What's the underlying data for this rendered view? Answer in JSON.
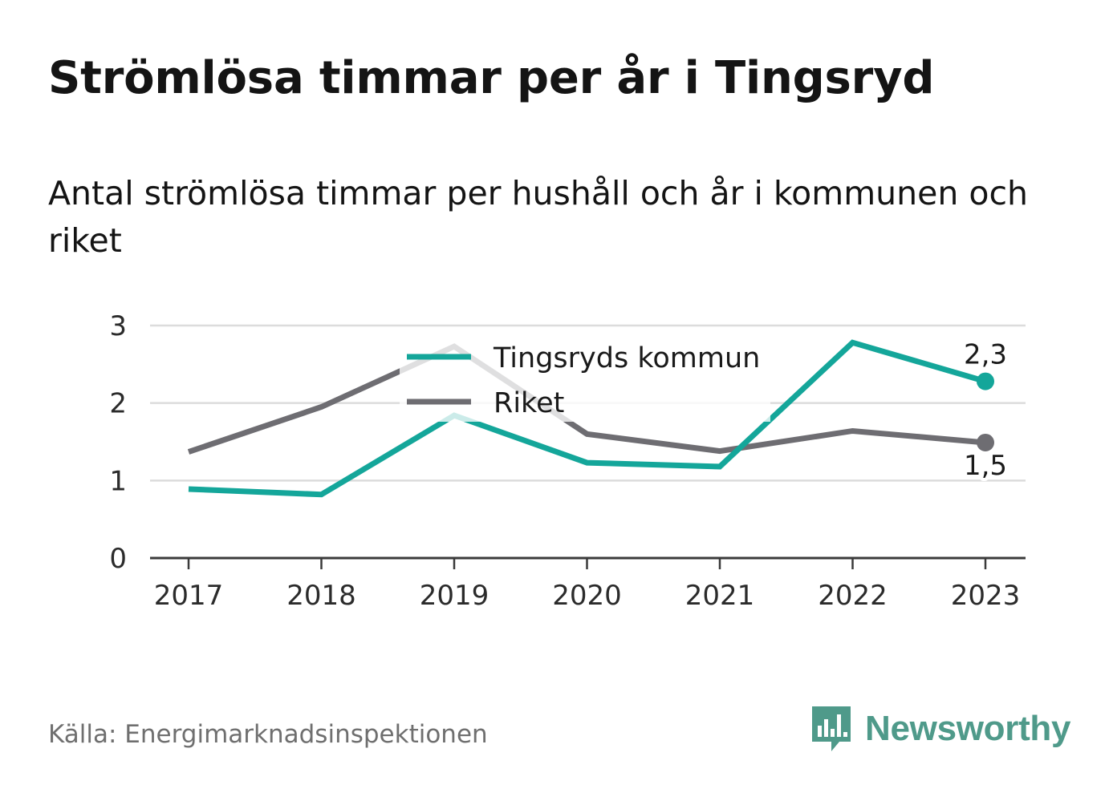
{
  "title": "Strömlösa timmar per år i Tingsryd",
  "subtitle": "Antal strömlösa timmar per hushåll och år i kommunen och riket",
  "source": "Källa: Energimarknadsinspektionen",
  "brand": {
    "name": "Newsworthy",
    "icon": "newsworthy-chart-bubble-icon",
    "color": "#4f9a8a"
  },
  "chart_data": {
    "type": "line",
    "x": [
      "2017",
      "2018",
      "2019",
      "2020",
      "2021",
      "2022",
      "2023"
    ],
    "ylim": [
      0,
      3
    ],
    "yticks": [
      "0",
      "1",
      "2",
      "3"
    ],
    "grid": true,
    "legend_position": "top-center",
    "series": [
      {
        "name": "Tingsryds kommun",
        "color": "#14a69a",
        "values": [
          0.89,
          0.82,
          1.84,
          1.23,
          1.18,
          2.78,
          2.28
        ],
        "end_label": "2,3"
      },
      {
        "name": "Riket",
        "color": "#6e6d72",
        "values": [
          1.37,
          1.95,
          2.73,
          1.6,
          1.38,
          1.64,
          1.49
        ],
        "end_label": "1,5"
      }
    ]
  }
}
